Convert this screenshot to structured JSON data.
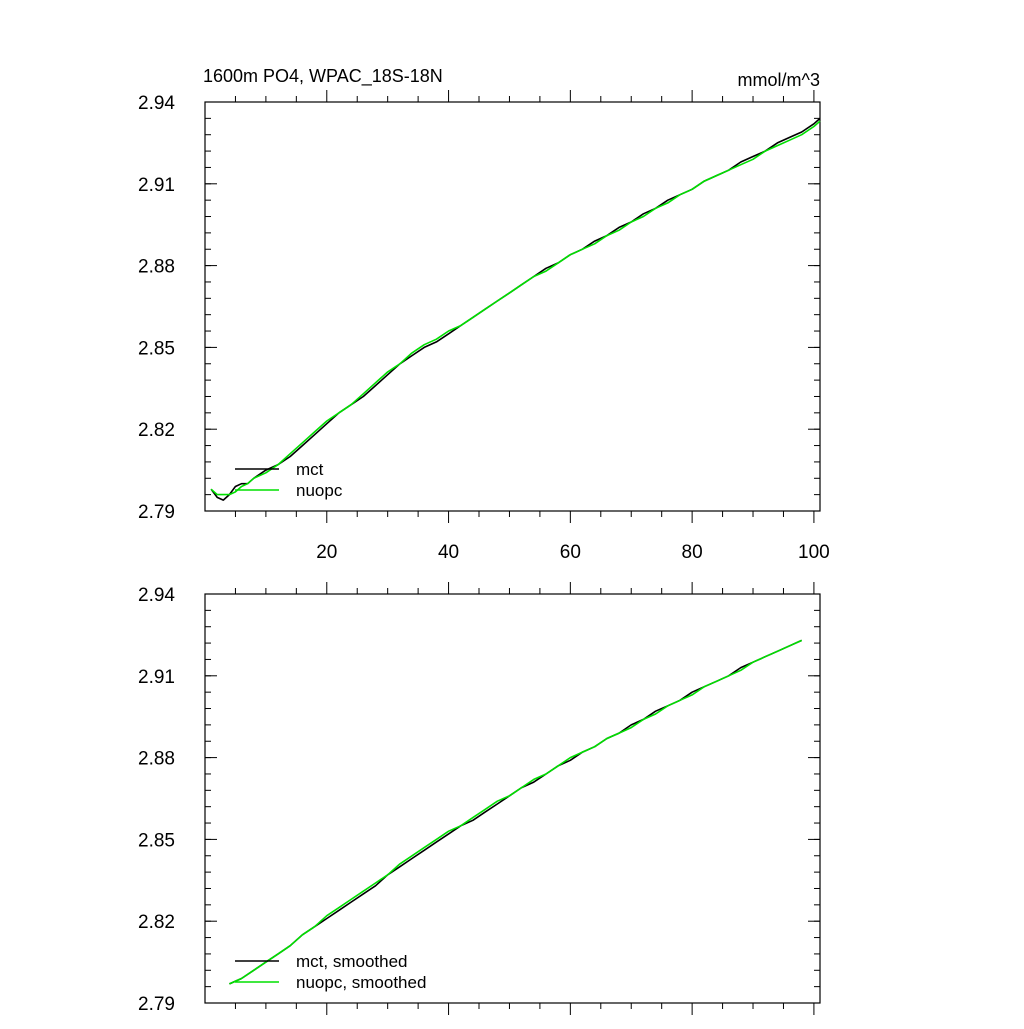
{
  "chart_data": [
    {
      "type": "line",
      "title": "1600m PO4, WPAC_18S-18N",
      "units": "mmol/m^3",
      "xlim": [
        0,
        101
      ],
      "ylim": [
        2.79,
        2.94
      ],
      "x_ticks": [
        20,
        40,
        60,
        80,
        100
      ],
      "x_tick_labels": [
        "20",
        "40",
        "60",
        "80",
        "100"
      ],
      "y_ticks": [
        2.79,
        2.82,
        2.85,
        2.88,
        2.91,
        2.94
      ],
      "y_tick_labels": [
        "2.79",
        "2.82",
        "2.85",
        "2.88",
        "2.91",
        "2.94"
      ],
      "legend_position": "lower-left",
      "series": [
        {
          "name": "mct",
          "color": "#000000",
          "x": [
            1,
            2,
            3,
            4,
            5,
            6,
            7,
            8,
            10,
            12,
            14,
            16,
            18,
            20,
            22,
            24,
            26,
            28,
            30,
            32,
            34,
            36,
            38,
            40,
            42,
            44,
            46,
            48,
            50,
            52,
            54,
            56,
            58,
            60,
            62,
            64,
            66,
            68,
            70,
            72,
            74,
            76,
            78,
            80,
            82,
            84,
            86,
            88,
            90,
            92,
            94,
            96,
            98,
            100,
            101
          ],
          "y": [
            2.798,
            2.795,
            2.794,
            2.796,
            2.799,
            2.8,
            2.8,
            2.802,
            2.805,
            2.807,
            2.81,
            2.814,
            2.818,
            2.822,
            2.826,
            2.829,
            2.832,
            2.836,
            2.84,
            2.844,
            2.847,
            2.85,
            2.852,
            2.855,
            2.858,
            2.861,
            2.864,
            2.867,
            2.87,
            2.873,
            2.876,
            2.879,
            2.881,
            2.884,
            2.886,
            2.889,
            2.891,
            2.894,
            2.896,
            2.899,
            2.901,
            2.904,
            2.906,
            2.908,
            2.911,
            2.913,
            2.915,
            2.918,
            2.92,
            2.922,
            2.925,
            2.927,
            2.929,
            2.932,
            2.934
          ]
        },
        {
          "name": "nuopc",
          "color": "#00e000",
          "x": [
            1,
            2,
            3,
            4,
            5,
            6,
            7,
            8,
            10,
            12,
            14,
            16,
            18,
            20,
            22,
            24,
            26,
            28,
            30,
            32,
            34,
            36,
            38,
            40,
            42,
            44,
            46,
            48,
            50,
            52,
            54,
            56,
            58,
            60,
            62,
            64,
            66,
            68,
            70,
            72,
            74,
            76,
            78,
            80,
            82,
            84,
            86,
            88,
            90,
            92,
            94,
            96,
            98,
            100,
            101
          ],
          "y": [
            2.798,
            2.796,
            2.796,
            2.796,
            2.797,
            2.799,
            2.8,
            2.802,
            2.804,
            2.807,
            2.811,
            2.815,
            2.819,
            2.823,
            2.826,
            2.829,
            2.833,
            2.837,
            2.841,
            2.844,
            2.848,
            2.851,
            2.853,
            2.856,
            2.858,
            2.861,
            2.864,
            2.867,
            2.87,
            2.873,
            2.876,
            2.878,
            2.881,
            2.884,
            2.886,
            2.888,
            2.891,
            2.893,
            2.896,
            2.898,
            2.901,
            2.903,
            2.906,
            2.908,
            2.911,
            2.913,
            2.915,
            2.917,
            2.919,
            2.922,
            2.924,
            2.926,
            2.928,
            2.931,
            2.933
          ]
        }
      ]
    },
    {
      "type": "line",
      "xlim": [
        0,
        101
      ],
      "ylim": [
        2.79,
        2.94
      ],
      "x_ticks": [
        20,
        40,
        60,
        80,
        100
      ],
      "y_ticks": [
        2.79,
        2.82,
        2.85,
        2.88,
        2.91,
        2.94
      ],
      "y_tick_labels": [
        "2.79",
        "2.82",
        "2.85",
        "2.88",
        "2.91",
        "2.94"
      ],
      "legend_position": "lower-left",
      "series": [
        {
          "name": "mct, smoothed",
          "color": "#000000",
          "x": [
            4,
            6,
            8,
            10,
            12,
            14,
            16,
            18,
            20,
            22,
            24,
            26,
            28,
            30,
            32,
            34,
            36,
            38,
            40,
            42,
            44,
            46,
            48,
            50,
            52,
            54,
            56,
            58,
            60,
            62,
            64,
            66,
            68,
            70,
            72,
            74,
            76,
            78,
            80,
            82,
            84,
            86,
            88,
            90,
            92,
            94,
            96,
            98
          ],
          "y": [
            2.797,
            2.799,
            2.802,
            2.805,
            2.808,
            2.811,
            2.815,
            2.818,
            2.821,
            2.824,
            2.827,
            2.83,
            2.833,
            2.837,
            2.84,
            2.843,
            2.846,
            2.849,
            2.852,
            2.855,
            2.857,
            2.86,
            2.863,
            2.866,
            2.869,
            2.871,
            2.874,
            2.877,
            2.879,
            2.882,
            2.884,
            2.887,
            2.889,
            2.892,
            2.894,
            2.897,
            2.899,
            2.901,
            2.904,
            2.906,
            2.908,
            2.91,
            2.913,
            2.915,
            2.917,
            2.919,
            2.921,
            2.923
          ]
        },
        {
          "name": "nuopc, smoothed",
          "color": "#00e000",
          "x": [
            4,
            6,
            8,
            10,
            12,
            14,
            16,
            18,
            20,
            22,
            24,
            26,
            28,
            30,
            32,
            34,
            36,
            38,
            40,
            42,
            44,
            46,
            48,
            50,
            52,
            54,
            56,
            58,
            60,
            62,
            64,
            66,
            68,
            70,
            72,
            74,
            76,
            78,
            80,
            82,
            84,
            86,
            88,
            90,
            92,
            94,
            96,
            98
          ],
          "y": [
            2.797,
            2.799,
            2.802,
            2.805,
            2.808,
            2.811,
            2.815,
            2.818,
            2.822,
            2.825,
            2.828,
            2.831,
            2.834,
            2.837,
            2.841,
            2.844,
            2.847,
            2.85,
            2.853,
            2.855,
            2.858,
            2.861,
            2.864,
            2.866,
            2.869,
            2.872,
            2.874,
            2.877,
            2.88,
            2.882,
            2.884,
            2.887,
            2.889,
            2.891,
            2.894,
            2.896,
            2.899,
            2.901,
            2.903,
            2.906,
            2.908,
            2.91,
            2.912,
            2.915,
            2.917,
            2.919,
            2.921,
            2.923
          ]
        }
      ]
    }
  ]
}
